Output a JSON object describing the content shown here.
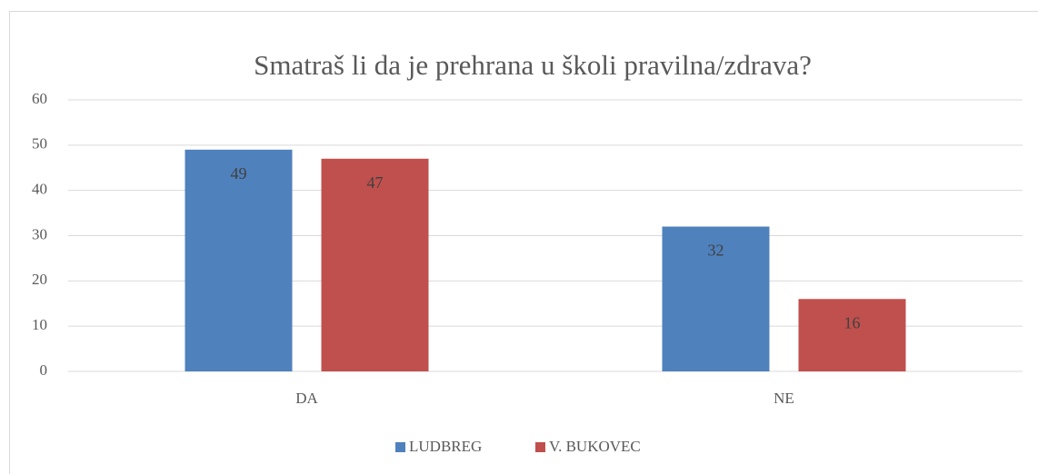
{
  "chart_data": {
    "type": "bar",
    "title": "Smatraš li da je prehrana u školi pravilna/zdrava?",
    "categories": [
      "DA",
      "NE"
    ],
    "series": [
      {
        "name": "LUDBREG",
        "color": "#4f81bd",
        "values": [
          49,
          32
        ]
      },
      {
        "name": "V. BUKOVEC",
        "color": "#c0504d",
        "values": [
          47,
          16
        ]
      }
    ],
    "ylim": [
      0,
      60
    ],
    "yticks": [
      0,
      10,
      20,
      30,
      40,
      50,
      60
    ],
    "grid": true,
    "legend": "bottom"
  }
}
